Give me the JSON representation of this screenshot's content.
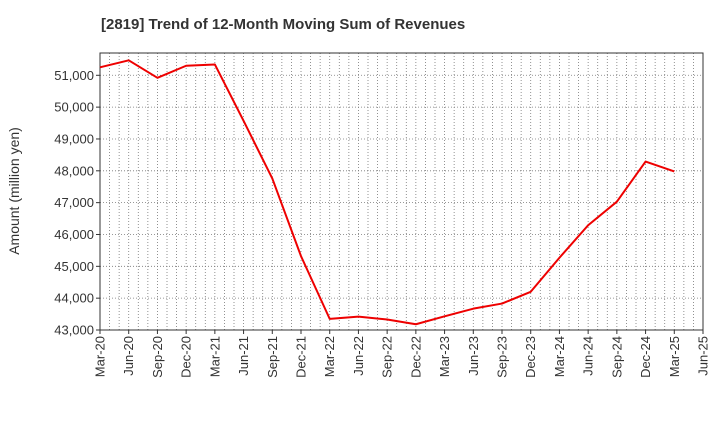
{
  "chart_data": {
    "type": "line",
    "title": "[2819]  Trend of 12-Month Moving Sum of Revenues",
    "xlabel": "",
    "ylabel": "Amount (million yen)",
    "ylim": [
      43000,
      51700
    ],
    "yticks": [
      43000,
      44000,
      45000,
      46000,
      47000,
      48000,
      49000,
      50000,
      51000
    ],
    "ytick_labels": [
      "43,000",
      "44,000",
      "45,000",
      "46,000",
      "47,000",
      "48,000",
      "49,000",
      "50,000",
      "51,000"
    ],
    "xtick_labels": [
      "Mar-20",
      "Jun-20",
      "Sep-20",
      "Dec-20",
      "Mar-21",
      "Jun-21",
      "Sep-21",
      "Dec-21",
      "Mar-22",
      "Jun-22",
      "Sep-22",
      "Dec-22",
      "Mar-23",
      "Jun-23",
      "Sep-23",
      "Dec-23",
      "Mar-24",
      "Jun-24",
      "Sep-24",
      "Dec-24",
      "Mar-25",
      "Jun-25"
    ],
    "grid": true,
    "color": "#ee0000",
    "series": [
      {
        "x": [
          "Mar-20",
          "Jun-20",
          "Sep-20",
          "Dec-20",
          "Mar-21",
          "Jun-21",
          "Sep-21",
          "Dec-21",
          "Mar-22",
          "Jun-22",
          "Sep-22",
          "Dec-22",
          "Mar-23",
          "Jun-23",
          "Sep-23",
          "Dec-23",
          "Mar-24",
          "Jun-24",
          "Sep-24",
          "Dec-24",
          "Mar-25"
        ],
        "values": [
          51250,
          51470,
          50920,
          51300,
          51340,
          49570,
          47760,
          45320,
          43350,
          43420,
          43330,
          43180,
          43430,
          43670,
          43830,
          44200,
          45270,
          46290,
          47030,
          48290,
          47980
        ]
      }
    ]
  }
}
